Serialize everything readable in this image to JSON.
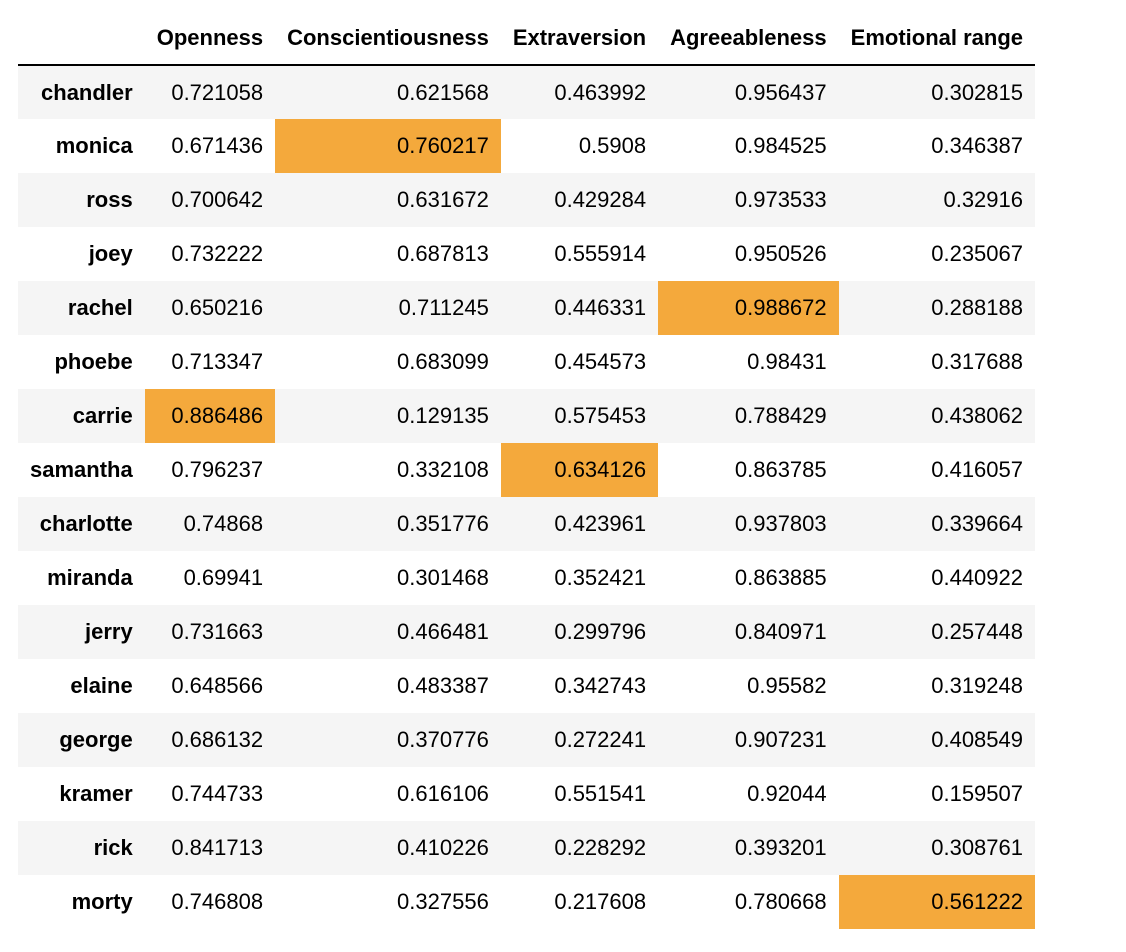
{
  "table": {
    "corner_label": "",
    "columns": [
      "Openness",
      "Conscientiousness",
      "Extraversion",
      "Agreeableness",
      "Emotional range"
    ],
    "highlight_color": "#f4a93c",
    "stripe_color": "#f5f5f5",
    "rows": [
      {
        "name": "chandler",
        "values": [
          "0.721058",
          "0.621568",
          "0.463992",
          "0.956437",
          "0.302815"
        ],
        "highlight": [
          false,
          false,
          false,
          false,
          false
        ]
      },
      {
        "name": "monica",
        "values": [
          "0.671436",
          "0.760217",
          "0.5908",
          "0.984525",
          "0.346387"
        ],
        "highlight": [
          false,
          true,
          false,
          false,
          false
        ]
      },
      {
        "name": "ross",
        "values": [
          "0.700642",
          "0.631672",
          "0.429284",
          "0.973533",
          "0.32916"
        ],
        "highlight": [
          false,
          false,
          false,
          false,
          false
        ]
      },
      {
        "name": "joey",
        "values": [
          "0.732222",
          "0.687813",
          "0.555914",
          "0.950526",
          "0.235067"
        ],
        "highlight": [
          false,
          false,
          false,
          false,
          false
        ]
      },
      {
        "name": "rachel",
        "values": [
          "0.650216",
          "0.711245",
          "0.446331",
          "0.988672",
          "0.288188"
        ],
        "highlight": [
          false,
          false,
          false,
          true,
          false
        ]
      },
      {
        "name": "phoebe",
        "values": [
          "0.713347",
          "0.683099",
          "0.454573",
          "0.98431",
          "0.317688"
        ],
        "highlight": [
          false,
          false,
          false,
          false,
          false
        ]
      },
      {
        "name": "carrie",
        "values": [
          "0.886486",
          "0.129135",
          "0.575453",
          "0.788429",
          "0.438062"
        ],
        "highlight": [
          true,
          false,
          false,
          false,
          false
        ]
      },
      {
        "name": "samantha",
        "values": [
          "0.796237",
          "0.332108",
          "0.634126",
          "0.863785",
          "0.416057"
        ],
        "highlight": [
          false,
          false,
          true,
          false,
          false
        ]
      },
      {
        "name": "charlotte",
        "values": [
          "0.74868",
          "0.351776",
          "0.423961",
          "0.937803",
          "0.339664"
        ],
        "highlight": [
          false,
          false,
          false,
          false,
          false
        ]
      },
      {
        "name": "miranda",
        "values": [
          "0.69941",
          "0.301468",
          "0.352421",
          "0.863885",
          "0.440922"
        ],
        "highlight": [
          false,
          false,
          false,
          false,
          false
        ]
      },
      {
        "name": "jerry",
        "values": [
          "0.731663",
          "0.466481",
          "0.299796",
          "0.840971",
          "0.257448"
        ],
        "highlight": [
          false,
          false,
          false,
          false,
          false
        ]
      },
      {
        "name": "elaine",
        "values": [
          "0.648566",
          "0.483387",
          "0.342743",
          "0.95582",
          "0.319248"
        ],
        "highlight": [
          false,
          false,
          false,
          false,
          false
        ]
      },
      {
        "name": "george",
        "values": [
          "0.686132",
          "0.370776",
          "0.272241",
          "0.907231",
          "0.408549"
        ],
        "highlight": [
          false,
          false,
          false,
          false,
          false
        ]
      },
      {
        "name": "kramer",
        "values": [
          "0.744733",
          "0.616106",
          "0.551541",
          "0.92044",
          "0.159507"
        ],
        "highlight": [
          false,
          false,
          false,
          false,
          false
        ]
      },
      {
        "name": "rick",
        "values": [
          "0.841713",
          "0.410226",
          "0.228292",
          "0.393201",
          "0.308761"
        ],
        "highlight": [
          false,
          false,
          false,
          false,
          false
        ]
      },
      {
        "name": "morty",
        "values": [
          "0.746808",
          "0.327556",
          "0.217608",
          "0.780668",
          "0.561222"
        ],
        "highlight": [
          false,
          false,
          false,
          false,
          true
        ]
      }
    ]
  }
}
